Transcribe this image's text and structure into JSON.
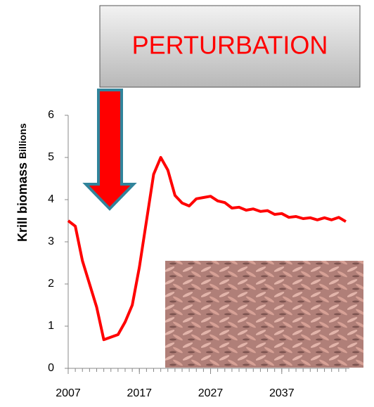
{
  "chart_data": {
    "type": "line",
    "annotation": "PERTURBATION",
    "y_label": "Krill biomass",
    "y_label_unit": "Billions",
    "x": [
      2007,
      2008,
      2009,
      2010,
      2011,
      2012,
      2013,
      2014,
      2015,
      2016,
      2017,
      2018,
      2019,
      2020,
      2021,
      2022,
      2023,
      2024,
      2025,
      2026,
      2027,
      2028,
      2029,
      2030,
      2031,
      2032,
      2033,
      2034,
      2035,
      2036,
      2037,
      2038,
      2039,
      2040,
      2041,
      2042,
      2043,
      2044,
      2045,
      2046
    ],
    "series": [
      {
        "name": "Krill biomass",
        "color": "#ff0000",
        "values": [
          3.5,
          3.37,
          2.55,
          2.0,
          1.45,
          0.68,
          0.74,
          0.8,
          1.1,
          1.5,
          2.4,
          3.5,
          4.6,
          5.0,
          4.7,
          4.1,
          3.92,
          3.85,
          4.02,
          4.05,
          4.08,
          3.97,
          3.93,
          3.8,
          3.82,
          3.75,
          3.78,
          3.72,
          3.74,
          3.65,
          3.67,
          3.58,
          3.6,
          3.55,
          3.57,
          3.52,
          3.57,
          3.52,
          3.58,
          3.48
        ]
      }
    ],
    "xlim": [
      2007,
      2046.5
    ],
    "xticks": [
      2007,
      2017,
      2027,
      2037
    ],
    "ylim": [
      0,
      6
    ],
    "yticks": [
      0,
      1,
      2,
      3,
      4,
      5,
      6
    ]
  }
}
